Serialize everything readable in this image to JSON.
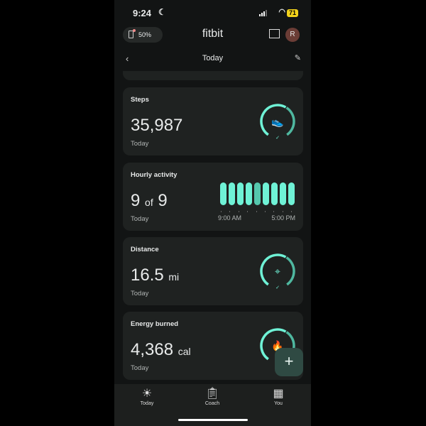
{
  "status": {
    "time": "9:24",
    "battery": "71"
  },
  "header": {
    "device_battery": "50%",
    "logo": "fitbit",
    "avatar_initial": "R"
  },
  "nav": {
    "title": "Today"
  },
  "cards": [
    {
      "label": "Steps",
      "value": "35,987",
      "unit": "",
      "sub": "Today",
      "icon": "shoe-icon"
    },
    {
      "label": "Hourly activity",
      "value": "9",
      "of": "of",
      "total": "9",
      "sub": "Today",
      "start": "9:00 AM",
      "end": "5:00 PM",
      "hours_active": 9
    },
    {
      "label": "Distance",
      "value": "16.5",
      "unit": "mi",
      "sub": "Today",
      "icon": "location-pin-icon"
    },
    {
      "label": "Energy burned",
      "value": "4,368",
      "unit": "cal",
      "sub": "Today",
      "icon": "flame-icon"
    }
  ],
  "fab": "+",
  "bottom_nav": [
    {
      "label": "Today"
    },
    {
      "label": "Coach"
    },
    {
      "label": "You"
    }
  ],
  "colors": {
    "accent": "#6ff2d6",
    "ring_dark": "#4fb8a0",
    "card": "#1f2221",
    "background": "#121414"
  }
}
